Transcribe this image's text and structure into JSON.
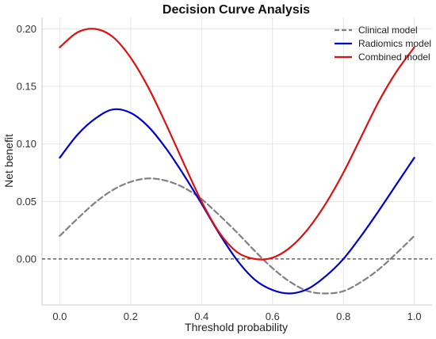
{
  "chart_data": {
    "type": "line",
    "title": "Decision Curve Analysis",
    "xlabel": "Threshold probability",
    "ylabel": "Net benefit",
    "xlim": [
      -0.05,
      1.05
    ],
    "ylim": [
      -0.04,
      0.21
    ],
    "xticks": [
      0.0,
      0.2,
      0.4,
      0.6,
      0.8,
      1.0
    ],
    "xtick_labels": [
      "0.0",
      "0.2",
      "0.4",
      "0.6",
      "0.8",
      "1.0"
    ],
    "yticks": [
      0.0,
      0.05,
      0.1,
      0.15,
      0.2
    ],
    "ytick_labels": [
      "0.00",
      "0.05",
      "0.10",
      "0.15",
      "0.20"
    ],
    "grid": true,
    "legend_position": "top-right",
    "reference_line": {
      "y": 0.0,
      "style": "dashed",
      "color": "#333333"
    },
    "series": [
      {
        "name": "Clinical model",
        "color": "#808080",
        "style": "dashed",
        "x": [
          0.0,
          0.05,
          0.1,
          0.15,
          0.2,
          0.25,
          0.3,
          0.35,
          0.4,
          0.45,
          0.5,
          0.55,
          0.6,
          0.65,
          0.7,
          0.75,
          0.8,
          0.85,
          0.9,
          0.95,
          1.0
        ],
        "y": [
          0.02,
          0.035,
          0.049,
          0.06,
          0.067,
          0.07,
          0.068,
          0.062,
          0.052,
          0.038,
          0.023,
          0.007,
          -0.008,
          -0.02,
          -0.028,
          -0.03,
          -0.028,
          -0.02,
          -0.009,
          0.005,
          0.02
        ]
      },
      {
        "name": "Radiomics model",
        "color": "#0000cc",
        "style": "solid",
        "x": [
          0.0,
          0.05,
          0.1,
          0.15,
          0.2,
          0.25,
          0.3,
          0.35,
          0.4,
          0.45,
          0.5,
          0.55,
          0.6,
          0.65,
          0.7,
          0.75,
          0.8,
          0.85,
          0.9,
          0.95,
          1.0
        ],
        "y": [
          0.088,
          0.108,
          0.122,
          0.13,
          0.127,
          0.115,
          0.096,
          0.073,
          0.048,
          0.022,
          -0.001,
          -0.018,
          -0.027,
          -0.03,
          -0.026,
          -0.015,
          0.0,
          0.02,
          0.042,
          0.065,
          0.088
        ]
      },
      {
        "name": "Combined model",
        "color": "#dd1111",
        "style": "solid",
        "x": [
          0.0,
          0.05,
          0.1,
          0.15,
          0.2,
          0.25,
          0.3,
          0.35,
          0.4,
          0.45,
          0.5,
          0.55,
          0.6,
          0.65,
          0.7,
          0.75,
          0.8,
          0.85,
          0.9,
          0.95,
          1.0
        ],
        "y": [
          0.184,
          0.197,
          0.2,
          0.193,
          0.175,
          0.149,
          0.117,
          0.083,
          0.05,
          0.023,
          0.006,
          0.0,
          0.001,
          0.01,
          0.026,
          0.048,
          0.075,
          0.106,
          0.137,
          0.163,
          0.184
        ]
      }
    ]
  }
}
